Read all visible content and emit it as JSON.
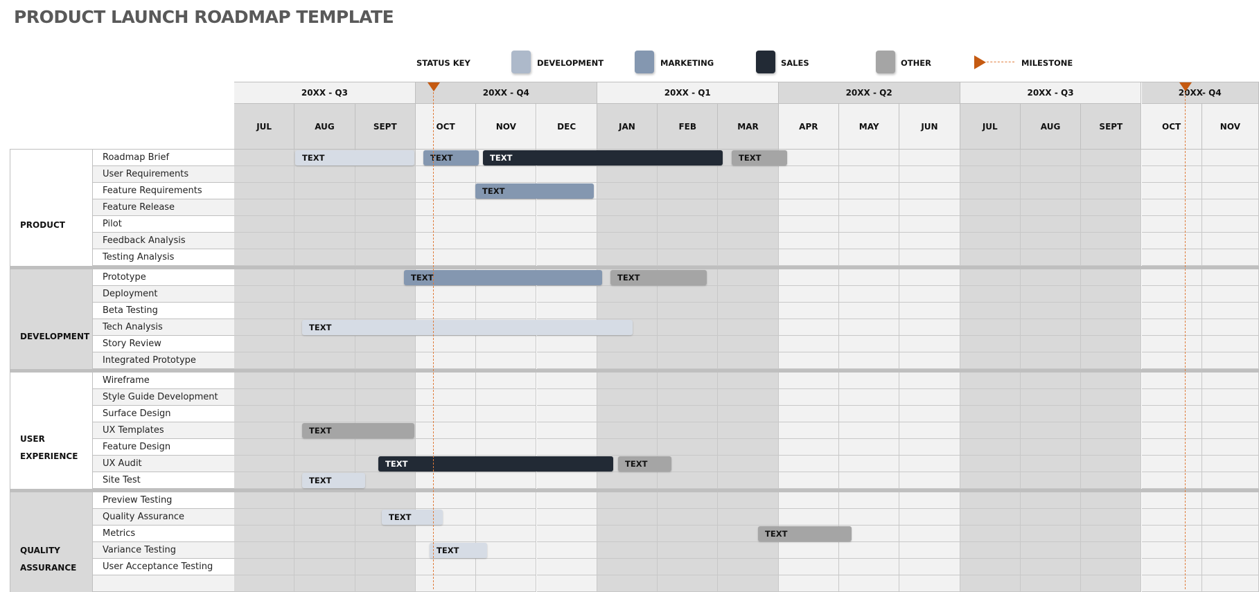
{
  "title": "PRODUCT LAUNCH ROADMAP TEMPLATE",
  "status_key": {
    "label": "STATUS KEY",
    "items": [
      {
        "label": "DEVELOPMENT",
        "color": "#adb9ca"
      },
      {
        "label": "MARKETING",
        "color": "#8497b0"
      },
      {
        "label": "SALES",
        "color": "#222a35"
      },
      {
        "label": "OTHER",
        "color": "#a5a5a5"
      },
      {
        "label": "MILESTONE",
        "color": "#c55a11"
      }
    ]
  },
  "bar_colors": {
    "development": "#d6dce5",
    "marketing": "#8497b0",
    "sales": "#222a35",
    "other": "#a5a5a5"
  },
  "quarters": [
    "20XX - Q3",
    "20XX - Q4",
    "20XX - Q1",
    "20XX - Q2",
    "20XX - Q3",
    "20XX- Q4"
  ],
  "months": [
    "JUL",
    "AUG",
    "SEPT",
    "OCT",
    "NOV",
    "DEC",
    "JAN",
    "FEB",
    "MAR",
    "APR",
    "MAY",
    "JUN",
    "JUL",
    "AUG",
    "SEPT",
    "OCT",
    "NOV"
  ],
  "sections": [
    {
      "label": [
        "PRODUCT"
      ],
      "items": [
        "Roadmap Brief",
        "User Requirements",
        "Feature Requirements",
        "Feature Release",
        "Pilot",
        "Feedback Analysis",
        "Testing Analysis"
      ]
    },
    {
      "label": [
        "DEVELOPMENT"
      ],
      "items": [
        "Prototype",
        "Deployment",
        "Beta Testing",
        "Tech Analysis",
        "Story Review",
        "Integrated Prototype"
      ]
    },
    {
      "label": [
        "USER",
        "EXPERIENCE"
      ],
      "items": [
        "Wireframe",
        "Style Guide Development",
        "Surface Design",
        "UX Templates",
        "Feature Design",
        "UX Audit",
        "Site Test"
      ]
    },
    {
      "label": [
        "QUALITY",
        "ASSURANCE"
      ],
      "items": [
        "Preview Testing",
        "Quality Assurance",
        "Metrics",
        "Variance Testing",
        "User Acceptance Testing",
        ""
      ]
    }
  ],
  "bars": [
    {
      "task": "Roadmap Brief",
      "type": "development",
      "label": "TEXT"
    },
    {
      "task": "Roadmap Brief",
      "type": "marketing",
      "label": "TEXT"
    },
    {
      "task": "Roadmap Brief",
      "type": "sales",
      "label": "TEXT"
    },
    {
      "task": "Roadmap Brief",
      "type": "other",
      "label": "TEXT"
    },
    {
      "task": "Feature Requirements",
      "type": "marketing",
      "label": "TEXT"
    },
    {
      "task": "Prototype",
      "type": "marketing",
      "label": "TEXT"
    },
    {
      "task": "Prototype",
      "type": "other",
      "label": "TEXT"
    },
    {
      "task": "Tech Analysis",
      "type": "development",
      "label": "TEXT"
    },
    {
      "task": "UX Templates",
      "type": "other",
      "label": "TEXT"
    },
    {
      "task": "UX Audit",
      "type": "sales",
      "label": "TEXT"
    },
    {
      "task": "UX Audit",
      "type": "other",
      "label": "TEXT"
    },
    {
      "task": "Site Test",
      "type": "development",
      "label": "TEXT"
    },
    {
      "task": "Quality Assurance",
      "type": "development",
      "label": "TEXT"
    },
    {
      "task": "Metrics",
      "type": "other",
      "label": "TEXT"
    },
    {
      "task": "Variance Testing",
      "type": "development",
      "label": "TEXT"
    }
  ],
  "milestones": [
    {
      "month": "OCT",
      "quarter": "20XX - Q4"
    },
    {
      "month": "OCT",
      "quarter": "20XX- Q4"
    }
  ]
}
